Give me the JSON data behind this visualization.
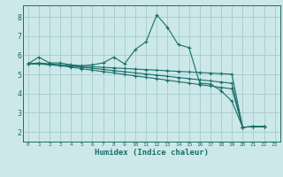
{
  "xlabel": "Humidex (Indice chaleur)",
  "background_color": "#cce8e8",
  "grid_color": "#aacfcf",
  "line_color": "#1a6e6a",
  "xlim": [
    -0.5,
    23.5
  ],
  "ylim": [
    1.5,
    8.6
  ],
  "xticks": [
    0,
    1,
    2,
    3,
    4,
    5,
    6,
    7,
    8,
    9,
    10,
    11,
    12,
    13,
    14,
    15,
    16,
    17,
    18,
    19,
    20,
    21,
    22,
    23
  ],
  "yticks": [
    2,
    3,
    4,
    5,
    6,
    7,
    8
  ],
  "series": [
    {
      "x": [
        0,
        1,
        2,
        3,
        4,
        5,
        6,
        7,
        8,
        9,
        10,
        11,
        12,
        13,
        14,
        15,
        16,
        17,
        18,
        19,
        20,
        21,
        22
      ],
      "y": [
        5.55,
        5.9,
        5.6,
        5.6,
        5.5,
        5.45,
        5.5,
        5.6,
        5.9,
        5.55,
        6.3,
        6.7,
        8.1,
        7.45,
        6.55,
        6.4,
        4.55,
        4.5,
        4.15,
        3.6,
        2.25,
        2.28,
        2.28
      ]
    },
    {
      "x": [
        0,
        1,
        2,
        3,
        4,
        5,
        6,
        7,
        8,
        9,
        10,
        11,
        12,
        13,
        14,
        15,
        16,
        17,
        18,
        19,
        20,
        21,
        22
      ],
      "y": [
        5.55,
        5.55,
        5.5,
        5.45,
        5.38,
        5.3,
        5.22,
        5.15,
        5.08,
        5.0,
        4.92,
        4.85,
        4.78,
        4.7,
        4.62,
        4.55,
        4.47,
        4.4,
        4.32,
        4.25,
        2.25,
        2.28,
        2.28
      ]
    },
    {
      "x": [
        0,
        1,
        2,
        3,
        4,
        5,
        6,
        7,
        8,
        9,
        10,
        11,
        12,
        13,
        14,
        15,
        16,
        17,
        18,
        19,
        20,
        21,
        22
      ],
      "y": [
        5.55,
        5.6,
        5.55,
        5.5,
        5.44,
        5.38,
        5.32,
        5.26,
        5.2,
        5.14,
        5.08,
        5.02,
        4.96,
        4.9,
        4.84,
        4.78,
        4.72,
        4.66,
        4.6,
        4.54,
        2.25,
        2.28,
        2.28
      ]
    },
    {
      "x": [
        0,
        1,
        2,
        3,
        4,
        5,
        6,
        7,
        8,
        9,
        10,
        11,
        12,
        13,
        14,
        15,
        16,
        17,
        18,
        19,
        20,
        21,
        22
      ],
      "y": [
        5.55,
        5.55,
        5.52,
        5.49,
        5.46,
        5.43,
        5.4,
        5.37,
        5.34,
        5.31,
        5.28,
        5.25,
        5.22,
        5.19,
        5.16,
        5.13,
        5.1,
        5.07,
        5.04,
        5.01,
        2.25,
        2.28,
        2.28
      ]
    }
  ]
}
